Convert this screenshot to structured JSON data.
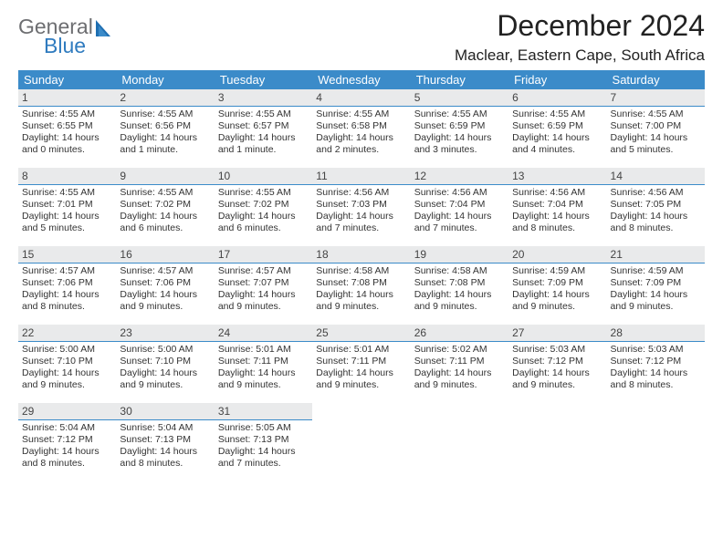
{
  "logo": {
    "word1": "General",
    "word2": "Blue",
    "grey": "#6d6e71",
    "blue": "#2f7bbf"
  },
  "title": "December 2024",
  "location": "Maclear, Eastern Cape, South Africa",
  "header_bg": "#3b8bc9",
  "header_fg": "#ffffff",
  "daynum_bg": "#e9eaeb",
  "daynum_border": "#3b8bc9",
  "weekdays": [
    "Sunday",
    "Monday",
    "Tuesday",
    "Wednesday",
    "Thursday",
    "Friday",
    "Saturday"
  ],
  "weeks": [
    [
      {
        "d": "1",
        "sr": "4:55 AM",
        "ss": "6:55 PM",
        "dl": "14 hours and 0 minutes."
      },
      {
        "d": "2",
        "sr": "4:55 AM",
        "ss": "6:56 PM",
        "dl": "14 hours and 1 minute."
      },
      {
        "d": "3",
        "sr": "4:55 AM",
        "ss": "6:57 PM",
        "dl": "14 hours and 1 minute."
      },
      {
        "d": "4",
        "sr": "4:55 AM",
        "ss": "6:58 PM",
        "dl": "14 hours and 2 minutes."
      },
      {
        "d": "5",
        "sr": "4:55 AM",
        "ss": "6:59 PM",
        "dl": "14 hours and 3 minutes."
      },
      {
        "d": "6",
        "sr": "4:55 AM",
        "ss": "6:59 PM",
        "dl": "14 hours and 4 minutes."
      },
      {
        "d": "7",
        "sr": "4:55 AM",
        "ss": "7:00 PM",
        "dl": "14 hours and 5 minutes."
      }
    ],
    [
      {
        "d": "8",
        "sr": "4:55 AM",
        "ss": "7:01 PM",
        "dl": "14 hours and 5 minutes."
      },
      {
        "d": "9",
        "sr": "4:55 AM",
        "ss": "7:02 PM",
        "dl": "14 hours and 6 minutes."
      },
      {
        "d": "10",
        "sr": "4:55 AM",
        "ss": "7:02 PM",
        "dl": "14 hours and 6 minutes."
      },
      {
        "d": "11",
        "sr": "4:56 AM",
        "ss": "7:03 PM",
        "dl": "14 hours and 7 minutes."
      },
      {
        "d": "12",
        "sr": "4:56 AM",
        "ss": "7:04 PM",
        "dl": "14 hours and 7 minutes."
      },
      {
        "d": "13",
        "sr": "4:56 AM",
        "ss": "7:04 PM",
        "dl": "14 hours and 8 minutes."
      },
      {
        "d": "14",
        "sr": "4:56 AM",
        "ss": "7:05 PM",
        "dl": "14 hours and 8 minutes."
      }
    ],
    [
      {
        "d": "15",
        "sr": "4:57 AM",
        "ss": "7:06 PM",
        "dl": "14 hours and 8 minutes."
      },
      {
        "d": "16",
        "sr": "4:57 AM",
        "ss": "7:06 PM",
        "dl": "14 hours and 9 minutes."
      },
      {
        "d": "17",
        "sr": "4:57 AM",
        "ss": "7:07 PM",
        "dl": "14 hours and 9 minutes."
      },
      {
        "d": "18",
        "sr": "4:58 AM",
        "ss": "7:08 PM",
        "dl": "14 hours and 9 minutes."
      },
      {
        "d": "19",
        "sr": "4:58 AM",
        "ss": "7:08 PM",
        "dl": "14 hours and 9 minutes."
      },
      {
        "d": "20",
        "sr": "4:59 AM",
        "ss": "7:09 PM",
        "dl": "14 hours and 9 minutes."
      },
      {
        "d": "21",
        "sr": "4:59 AM",
        "ss": "7:09 PM",
        "dl": "14 hours and 9 minutes."
      }
    ],
    [
      {
        "d": "22",
        "sr": "5:00 AM",
        "ss": "7:10 PM",
        "dl": "14 hours and 9 minutes."
      },
      {
        "d": "23",
        "sr": "5:00 AM",
        "ss": "7:10 PM",
        "dl": "14 hours and 9 minutes."
      },
      {
        "d": "24",
        "sr": "5:01 AM",
        "ss": "7:11 PM",
        "dl": "14 hours and 9 minutes."
      },
      {
        "d": "25",
        "sr": "5:01 AM",
        "ss": "7:11 PM",
        "dl": "14 hours and 9 minutes."
      },
      {
        "d": "26",
        "sr": "5:02 AM",
        "ss": "7:11 PM",
        "dl": "14 hours and 9 minutes."
      },
      {
        "d": "27",
        "sr": "5:03 AM",
        "ss": "7:12 PM",
        "dl": "14 hours and 9 minutes."
      },
      {
        "d": "28",
        "sr": "5:03 AM",
        "ss": "7:12 PM",
        "dl": "14 hours and 8 minutes."
      }
    ],
    [
      {
        "d": "29",
        "sr": "5:04 AM",
        "ss": "7:12 PM",
        "dl": "14 hours and 8 minutes."
      },
      {
        "d": "30",
        "sr": "5:04 AM",
        "ss": "7:13 PM",
        "dl": "14 hours and 8 minutes."
      },
      {
        "d": "31",
        "sr": "5:05 AM",
        "ss": "7:13 PM",
        "dl": "14 hours and 7 minutes."
      },
      null,
      null,
      null,
      null
    ]
  ],
  "labels": {
    "sunrise": "Sunrise:",
    "sunset": "Sunset:",
    "daylight": "Daylight:"
  }
}
